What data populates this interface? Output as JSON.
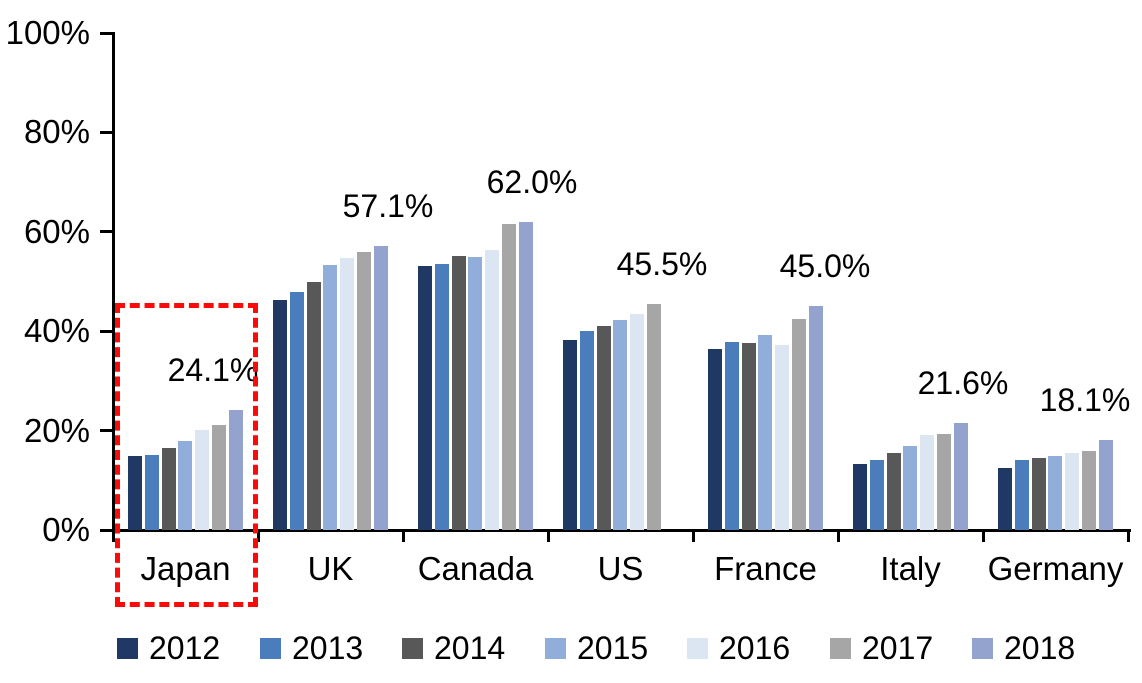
{
  "chart_data": {
    "type": "bar",
    "title": "",
    "xlabel": "",
    "ylabel": "",
    "ylim": [
      0,
      100
    ],
    "y_ticks": [
      "0%",
      "20%",
      "40%",
      "60%",
      "80%",
      "100%"
    ],
    "grid": "off",
    "legend_position": "bottom",
    "categories": [
      "Japan",
      "UK",
      "Canada",
      "US",
      "France",
      "Italy",
      "Germany"
    ],
    "series": [
      {
        "name": "2012",
        "color": "#1F3864",
        "values": [
          14.8,
          46.3,
          53.2,
          38.3,
          36.5,
          13.3,
          12.4
        ]
      },
      {
        "name": "2013",
        "color": "#4B7DBD",
        "values": [
          15.1,
          47.8,
          53.6,
          40.1,
          37.8,
          14.1,
          14.0
        ]
      },
      {
        "name": "2014",
        "color": "#585858",
        "values": [
          16.5,
          49.9,
          55.1,
          41.1,
          37.7,
          15.5,
          14.5
        ]
      },
      {
        "name": "2015",
        "color": "#91AEDA",
        "values": [
          18.0,
          53.3,
          55.0,
          42.2,
          39.3,
          17.0,
          14.8
        ]
      },
      {
        "name": "2016",
        "color": "#DCE6F3",
        "values": [
          20.1,
          54.8,
          56.4,
          43.5,
          37.3,
          19.2,
          15.6
        ]
      },
      {
        "name": "2017",
        "color": "#A6A6A6",
        "values": [
          21.1,
          55.9,
          61.5,
          45.5,
          42.4,
          19.4,
          16.0
        ]
      },
      {
        "name": "2018",
        "color": "#93A3CD",
        "values": [
          24.1,
          57.1,
          62.0,
          null,
          45.0,
          21.6,
          18.1
        ]
      }
    ],
    "value_labels": [
      {
        "category": "Japan",
        "text": "24.1%"
      },
      {
        "category": "UK",
        "text": "57.1%"
      },
      {
        "category": "Canada",
        "text": "62.0%"
      },
      {
        "category": "US",
        "text": "45.5%"
      },
      {
        "category": "France",
        "text": "45.0%"
      },
      {
        "category": "Italy",
        "text": "21.6%"
      },
      {
        "category": "Germany",
        "text": "18.1%"
      }
    ],
    "annotations": {
      "highlight_box_category": "Japan",
      "highlight_box_color": "#FB0A0A"
    }
  }
}
